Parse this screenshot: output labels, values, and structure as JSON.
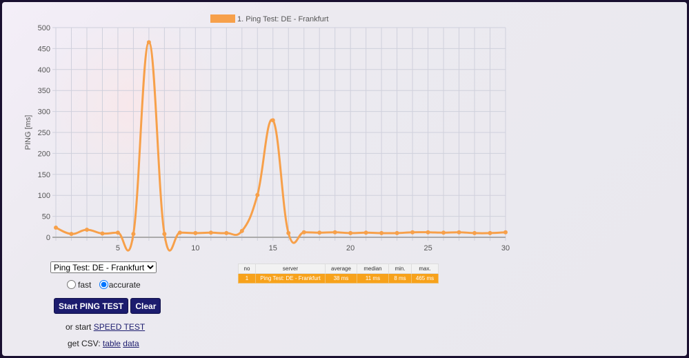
{
  "chart_data": {
    "type": "line",
    "legend": "1. Ping Test: DE - Frankfurt",
    "legend_position": "top",
    "ylabel": "PING [ms]",
    "xlim": [
      1,
      30
    ],
    "ylim": [
      0,
      500
    ],
    "yticks": [
      0,
      50,
      100,
      150,
      200,
      250,
      300,
      350,
      400,
      450,
      500
    ],
    "xticks": [
      5,
      10,
      15,
      20,
      25,
      30
    ],
    "grid": true,
    "color": "#f7a04a",
    "x": [
      1,
      2,
      3,
      4,
      5,
      6,
      7,
      8,
      9,
      10,
      11,
      12,
      13,
      14,
      15,
      16,
      17,
      18,
      19,
      20,
      21,
      22,
      23,
      24,
      25,
      26,
      27,
      28,
      29,
      30
    ],
    "series": [
      {
        "name": "1. Ping Test: DE - Frankfurt",
        "values": [
          23,
          8,
          18,
          9,
          11,
          8,
          465,
          8,
          11,
          10,
          11,
          10,
          15,
          101,
          279,
          10,
          12,
          11,
          12,
          10,
          11,
          10,
          10,
          12,
          12,
          11,
          12,
          10,
          10,
          12
        ]
      }
    ]
  },
  "controls": {
    "server_select": "Ping Test: DE - Frankfurt",
    "mode_fast": "fast",
    "mode_accurate": "accurate",
    "mode_selected": "accurate",
    "start_button": "Start PING TEST",
    "clear_button": "Clear",
    "speed_prefix": "or start ",
    "speed_link": "SPEED TEST",
    "csv_prefix": "get CSV: ",
    "csv_table": "table",
    "csv_data": "data"
  },
  "results": {
    "headers": [
      "no",
      "server",
      "average",
      "median",
      "min.",
      "max."
    ],
    "rows": [
      [
        "1",
        "Ping Test: DE - Frankfurt",
        "38 ms",
        "11 ms",
        "8 ms",
        "465 ms"
      ]
    ]
  }
}
